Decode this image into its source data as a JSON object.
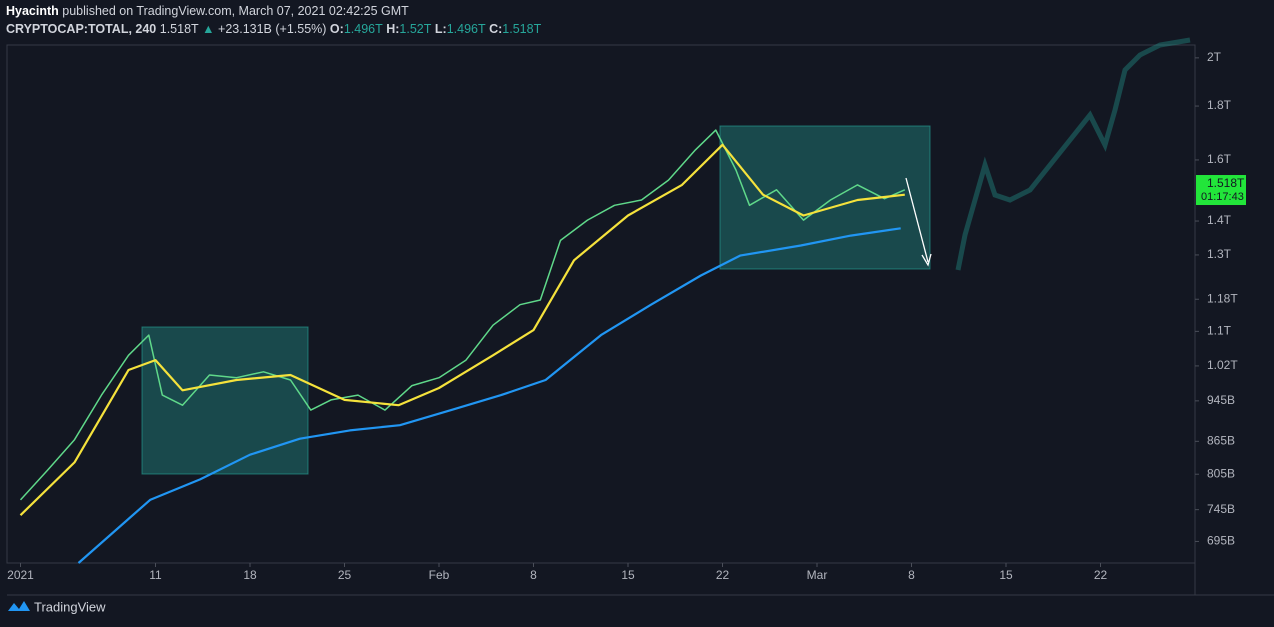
{
  "header": {
    "author": "Hyacinth",
    "published": "published on TradingView.com, March 07, 2021 02:42:25 GMT",
    "symbol": "CRYPTOCAP:TOTAL, 240",
    "last": "1.518T",
    "arrow": "▲",
    "change": "+23.131B (+1.55%)",
    "ohlc": [
      {
        "key": "O:",
        "val": "1.496T"
      },
      {
        "key": "H:",
        "val": "1.52T"
      },
      {
        "key": "L:",
        "val": "1.496T"
      },
      {
        "key": "C:",
        "val": "1.518T"
      }
    ]
  },
  "footer": {
    "brand": "TradingView"
  },
  "chart_data": {
    "type": "line",
    "log_scale": true,
    "grid": false,
    "xlim": [
      -1,
      87
    ],
    "ylim": [
      663,
      2057
    ],
    "xticks": [
      {
        "value": 0,
        "label": "2021"
      },
      {
        "value": 10,
        "label": "11"
      },
      {
        "value": 17,
        "label": "18"
      },
      {
        "value": 24,
        "label": "25"
      },
      {
        "value": 31,
        "label": "Feb"
      },
      {
        "value": 38,
        "label": "8"
      },
      {
        "value": 45,
        "label": "15"
      },
      {
        "value": 52,
        "label": "22"
      },
      {
        "value": 59,
        "label": "Mar"
      },
      {
        "value": 66,
        "label": "8"
      },
      {
        "value": 73,
        "label": "15"
      },
      {
        "value": 80,
        "label": "22"
      }
    ],
    "yticks": [
      {
        "value": 2000,
        "label": "2T"
      },
      {
        "value": 1800,
        "label": "1.8T"
      },
      {
        "value": 1600,
        "label": "1.6T"
      },
      {
        "value": 1400,
        "label": "1.4T"
      },
      {
        "value": 1300,
        "label": "1.3T"
      },
      {
        "value": 1180,
        "label": "1.18T"
      },
      {
        "value": 1100,
        "label": "1.1T"
      },
      {
        "value": 1020,
        "label": "1.02T"
      },
      {
        "value": 945,
        "label": "945B"
      },
      {
        "value": 865,
        "label": "865B"
      },
      {
        "value": 805,
        "label": "805B"
      },
      {
        "value": 745,
        "label": "745B"
      },
      {
        "value": 695,
        "label": "695B"
      }
    ],
    "series": [
      {
        "color": "#5fd88a",
        "x": [
          0,
          2,
          4,
          6,
          8,
          9.5,
          10.5,
          12,
          14,
          16,
          18,
          20,
          21.5,
          23,
          25,
          27,
          29,
          31,
          33,
          35,
          37,
          38.5,
          40,
          42,
          44,
          46,
          48,
          50,
          51.5,
          53,
          54,
          56,
          58,
          60,
          62,
          64,
          65.5
        ],
        "values": [
          761,
          812,
          868,
          957,
          1044,
          1091,
          957,
          936,
          1000,
          994,
          1007,
          989,
          926,
          947,
          957,
          926,
          977,
          994,
          1033,
          1115,
          1166,
          1178,
          1342,
          1403,
          1449,
          1466,
          1531,
          1636,
          1708,
          1565,
          1449,
          1499,
          1403,
          1466,
          1515,
          1470,
          1499
        ]
      },
      {
        "color": "#f5e23c",
        "x": [
          0,
          4,
          8,
          10,
          12,
          16,
          20,
          24,
          28,
          31,
          35,
          38,
          41,
          45,
          49,
          52,
          55,
          58,
          62,
          65.5
        ],
        "values": [
          736,
          826,
          1011,
          1033,
          967,
          989,
          1000,
          947,
          936,
          972,
          1044,
          1103,
          1285,
          1417,
          1515,
          1654,
          1483,
          1417,
          1466,
          1483
        ]
      },
      {
        "color": "#2196f3",
        "x": [
          4.3,
          9.6,
          13.3,
          17,
          20.7,
          24.4,
          28.1,
          31.9,
          35.6,
          38.9,
          43,
          46.7,
          50.4,
          53.3,
          57.8,
          61.5,
          65.2
        ],
        "values": [
          663,
          761,
          796,
          840,
          870,
          886,
          896,
          926,
          957,
          989,
          1091,
          1166,
          1243,
          1298,
          1327,
          1356,
          1378
        ]
      }
    ],
    "last_price": {
      "value": 1518,
      "label": "1.518T"
    },
    "countdown": "01:17:43"
  }
}
